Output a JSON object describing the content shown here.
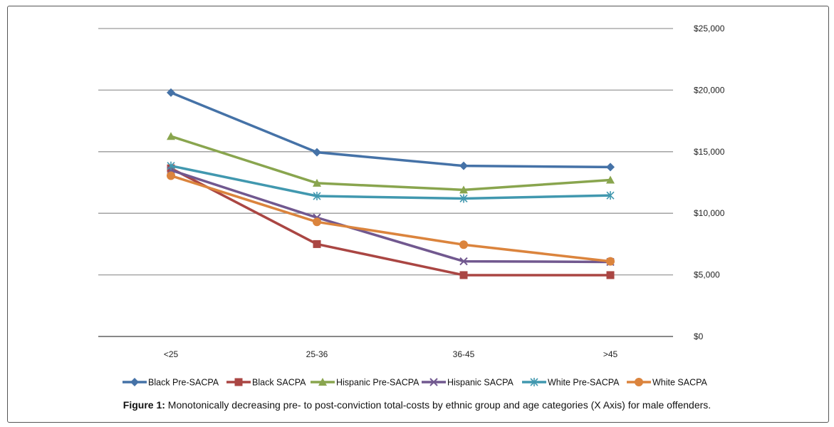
{
  "chart_data": {
    "type": "line",
    "categories": [
      "<25",
      "25-36",
      "36-45",
      ">45"
    ],
    "y_ticks": [
      "$0",
      "$5,000",
      "$10,000",
      "$15,000",
      "$20,000",
      "$25,000"
    ],
    "ylim": [
      0,
      25000
    ],
    "y_axis_side": "right",
    "grid": true,
    "legend_position": "bottom",
    "series": [
      {
        "name": "Black Pre-SACPA",
        "color": "#4572a7",
        "marker": "diamond",
        "values": [
          19800,
          14950,
          13850,
          13750
        ]
      },
      {
        "name": "Black SACPA",
        "color": "#aa4643",
        "marker": "square",
        "values": [
          13650,
          7500,
          4980,
          4980
        ]
      },
      {
        "name": "Hispanic Pre-SACPA",
        "color": "#89a54e",
        "marker": "triangle",
        "values": [
          16250,
          12450,
          11900,
          12700
        ]
      },
      {
        "name": "Hispanic SACPA",
        "color": "#71588f",
        "marker": "x",
        "values": [
          13500,
          9650,
          6100,
          6050
        ]
      },
      {
        "name": "White Pre-SACPA",
        "color": "#4198af",
        "marker": "star",
        "values": [
          13850,
          11400,
          11200,
          11450
        ]
      },
      {
        "name": "White SACPA",
        "color": "#db843d",
        "marker": "circle",
        "values": [
          13050,
          9300,
          7450,
          6100
        ]
      }
    ]
  },
  "caption": {
    "label": "Figure 1:",
    "text": " Monotonically decreasing pre- to post-conviction total-costs by ethnic group and age categories (X Axis) for male offenders."
  }
}
